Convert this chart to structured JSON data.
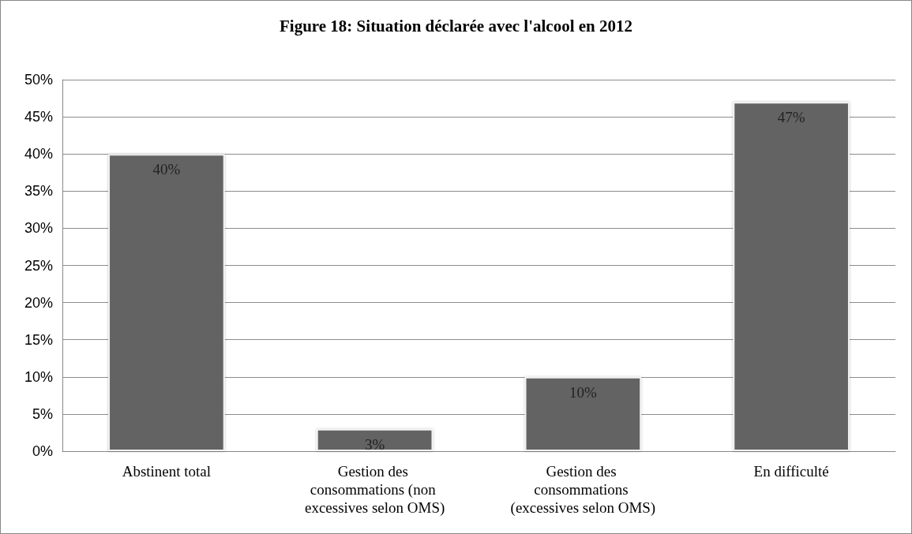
{
  "chart_data": {
    "type": "bar",
    "title": "Figure 18: Situation déclarée avec l'alcool en 2012",
    "categories": [
      "Abstinent total",
      "Gestion des consommations (non excessives selon OMS)",
      "Gestion des consommations (excessives selon OMS)",
      "En difficulté"
    ],
    "values": [
      40,
      3,
      10,
      47
    ],
    "value_labels": [
      "40%",
      "3%",
      "10%",
      "47%"
    ],
    "color": "#636363",
    "ylim": [
      0,
      50
    ],
    "yticks": [
      {
        "value": 0,
        "label": "0%"
      },
      {
        "value": 5,
        "label": "5%"
      },
      {
        "value": 10,
        "label": "10%"
      },
      {
        "value": 15,
        "label": "15%"
      },
      {
        "value": 20,
        "label": "20%"
      },
      {
        "value": 25,
        "label": "25%"
      },
      {
        "value": 30,
        "label": "30%"
      },
      {
        "value": 35,
        "label": "35%"
      },
      {
        "value": 40,
        "label": "40%"
      },
      {
        "value": 45,
        "label": "45%"
      },
      {
        "value": 50,
        "label": "50%"
      }
    ],
    "grid": "y"
  }
}
